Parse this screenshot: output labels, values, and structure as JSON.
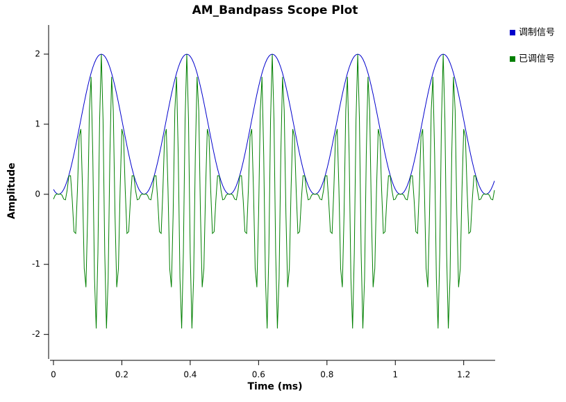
{
  "chart_data": {
    "type": "line",
    "title": "AM_Bandpass  Scope Plot",
    "x_label": "Time (ms)",
    "y_label": "Amplitude",
    "xlim": [
      0,
      1.29
    ],
    "xticks": [
      0,
      0.2,
      0.4,
      0.6,
      0.8,
      1,
      1.2
    ],
    "ylim": [
      -2.35,
      2.4
    ],
    "yticks": [
      -2,
      -1,
      0,
      1,
      2
    ],
    "legend": "top-right",
    "grid": false,
    "x": [
      0,
      0.005,
      0.01,
      0.015,
      0.02,
      0.025,
      0.03,
      0.035,
      0.04,
      0.045,
      0.05,
      0.055,
      0.06,
      0.065,
      0.07,
      0.075,
      0.08,
      0.085,
      0.09,
      0.095,
      0.1,
      0.105,
      0.11,
      0.115,
      0.12,
      0.125,
      0.13,
      0.135,
      0.14,
      0.145,
      0.15,
      0.155,
      0.16,
      0.165,
      0.17,
      0.175,
      0.18,
      0.185,
      0.19,
      0.195,
      0.2,
      0.205,
      0.21,
      0.215,
      0.22,
      0.225,
      0.23,
      0.235,
      0.24,
      0.245,
      0.25,
      0.255,
      0.26,
      0.265,
      0.27,
      0.275,
      0.28,
      0.285,
      0.29,
      0.295,
      0.3,
      0.305,
      0.31,
      0.315,
      0.32,
      0.325,
      0.33,
      0.335,
      0.34,
      0.345,
      0.35,
      0.355,
      0.36,
      0.365,
      0.37,
      0.375,
      0.38,
      0.385,
      0.39,
      0.395,
      0.4,
      0.405,
      0.41,
      0.415,
      0.42,
      0.425,
      0.43,
      0.435,
      0.44,
      0.445,
      0.45,
      0.455,
      0.46,
      0.465,
      0.47,
      0.475,
      0.48,
      0.485,
      0.49,
      0.495,
      0.5,
      0.505,
      0.51,
      0.515,
      0.52,
      0.525,
      0.53,
      0.535,
      0.54,
      0.545,
      0.55,
      0.555,
      0.56,
      0.565,
      0.57,
      0.575,
      0.58,
      0.585,
      0.59,
      0.595,
      0.6,
      0.605,
      0.61,
      0.615,
      0.62,
      0.625,
      0.63,
      0.635,
      0.64,
      0.645,
      0.65,
      0.655,
      0.66,
      0.665,
      0.67,
      0.675,
      0.68,
      0.685,
      0.69,
      0.695,
      0.7,
      0.705,
      0.71,
      0.715,
      0.72,
      0.725,
      0.73,
      0.735,
      0.74,
      0.745,
      0.75,
      0.755,
      0.76,
      0.765,
      0.77,
      0.775,
      0.78,
      0.785,
      0.79,
      0.795,
      0.8,
      0.805,
      0.81,
      0.815,
      0.82,
      0.825,
      0.83,
      0.835,
      0.84,
      0.845,
      0.85,
      0.855,
      0.86,
      0.865,
      0.87,
      0.875,
      0.88,
      0.885,
      0.89,
      0.895,
      0.9,
      0.905,
      0.91,
      0.915,
      0.92,
      0.925,
      0.93,
      0.935,
      0.94,
      0.945,
      0.95,
      0.955,
      0.96,
      0.965,
      0.97,
      0.975,
      0.98,
      0.985,
      0.99,
      0.995,
      1,
      1.005,
      1.01,
      1.015,
      1.02,
      1.025,
      1.03,
      1.035,
      1.04,
      1.045,
      1.05,
      1.055,
      1.06,
      1.065,
      1.07,
      1.075,
      1.08,
      1.085,
      1.09,
      1.095,
      1.1,
      1.105,
      1.11,
      1.115,
      1.12,
      1.125,
      1.13,
      1.135,
      1.14,
      1.145,
      1.15,
      1.155,
      1.16,
      1.165,
      1.17,
      1.175,
      1.18,
      1.185,
      1.19,
      1.195,
      1.2,
      1.205,
      1.21,
      1.215,
      1.22,
      1.225,
      1.23,
      1.235,
      1.24,
      1.245,
      1.25,
      1.255,
      1.26,
      1.265,
      1.27,
      1.275,
      1.28,
      1.285,
      1.29
    ],
    "series": [
      {
        "name": "调制信号",
        "color": "#0000cc",
        "values": [
          0.07,
          0.031,
          0.008,
          0,
          0.008,
          0.031,
          0.07,
          0.124,
          0.191,
          0.271,
          0.363,
          0.464,
          0.574,
          0.691,
          0.813,
          0.937,
          1.063,
          1.187,
          1.309,
          1.426,
          1.536,
          1.637,
          1.729,
          1.809,
          1.876,
          1.93,
          1.969,
          1.992,
          2,
          1.992,
          1.969,
          1.93,
          1.876,
          1.809,
          1.729,
          1.637,
          1.536,
          1.426,
          1.309,
          1.187,
          1.063,
          0.937,
          0.813,
          0.691,
          0.574,
          0.464,
          0.363,
          0.271,
          0.191,
          0.124,
          0.07,
          0.031,
          0.008,
          0,
          0.008,
          0.031,
          0.07,
          0.124,
          0.191,
          0.271,
          0.363,
          0.464,
          0.574,
          0.691,
          0.813,
          0.937,
          1.063,
          1.187,
          1.309,
          1.426,
          1.536,
          1.637,
          1.729,
          1.809,
          1.876,
          1.93,
          1.969,
          1.992,
          2,
          1.992,
          1.969,
          1.93,
          1.876,
          1.809,
          1.729,
          1.637,
          1.536,
          1.426,
          1.309,
          1.187,
          1.063,
          0.937,
          0.813,
          0.691,
          0.574,
          0.464,
          0.363,
          0.271,
          0.191,
          0.124,
          0.07,
          0.031,
          0.008,
          0,
          0.008,
          0.031,
          0.07,
          0.124,
          0.191,
          0.271,
          0.363,
          0.464,
          0.574,
          0.691,
          0.813,
          0.937,
          1.063,
          1.187,
          1.309,
          1.426,
          1.536,
          1.637,
          1.729,
          1.809,
          1.876,
          1.93,
          1.969,
          1.992,
          2,
          1.992,
          1.969,
          1.93,
          1.876,
          1.809,
          1.729,
          1.637,
          1.536,
          1.426,
          1.309,
          1.187,
          1.063,
          0.937,
          0.813,
          0.691,
          0.574,
          0.464,
          0.363,
          0.271,
          0.191,
          0.124,
          0.07,
          0.031,
          0.008,
          0,
          0.008,
          0.031,
          0.07,
          0.124,
          0.191,
          0.271,
          0.363,
          0.464,
          0.574,
          0.691,
          0.813,
          0.937,
          1.063,
          1.187,
          1.309,
          1.426,
          1.536,
          1.637,
          1.729,
          1.809,
          1.876,
          1.93,
          1.969,
          1.992,
          2,
          1.992,
          1.969,
          1.93,
          1.876,
          1.809,
          1.729,
          1.637,
          1.536,
          1.426,
          1.309,
          1.187,
          1.063,
          0.937,
          0.813,
          0.691,
          0.574,
          0.464,
          0.363,
          0.271,
          0.191,
          0.124,
          0.07,
          0.031,
          0.008,
          0,
          0.008,
          0.031,
          0.07,
          0.124,
          0.191,
          0.271,
          0.363,
          0.464,
          0.574,
          0.691,
          0.813,
          0.937,
          1.063,
          1.187,
          1.309,
          1.426,
          1.536,
          1.637,
          1.729,
          1.809,
          1.876,
          1.93,
          1.969,
          1.992,
          2,
          1.992,
          1.969,
          1.93,
          1.876,
          1.809,
          1.729,
          1.637,
          1.536,
          1.426,
          1.309,
          1.187,
          1.063,
          0.937,
          0.813,
          0.691,
          0.574,
          0.464,
          0.363,
          0.271,
          0.191,
          0.124,
          0.07,
          0.031,
          0.008,
          0,
          0.008,
          0.031,
          0.07,
          0.124,
          0.191
        ]
      },
      {
        "name": "已调信号",
        "color": "#007f00",
        "values": [
          -0.069,
          -0.013,
          0.004,
          0,
          0.004,
          -0.013,
          -0.069,
          -0.079,
          0.059,
          0.262,
          0.265,
          -0.087,
          -0.534,
          -0.559,
          0.051,
          0.821,
          0.931,
          0.075,
          -1.059,
          -1.326,
          -0.288,
          1.194,
          1.675,
          0.559,
          -1.196,
          -1.915,
          -0.838,
          1.067,
          2,
          1.067,
          -0.838,
          -1.915,
          -1.196,
          0.559,
          1.675,
          1.194,
          -0.288,
          -1.326,
          -1.059,
          0.075,
          0.931,
          0.821,
          0.051,
          -0.559,
          -0.534,
          -0.087,
          0.265,
          0.262,
          0.059,
          -0.079,
          -0.069,
          -0.013,
          0.004,
          0,
          0.004,
          -0.013,
          -0.069,
          -0.079,
          0.059,
          0.262,
          0.265,
          -0.087,
          -0.534,
          -0.559,
          0.051,
          0.821,
          0.931,
          0.075,
          -1.059,
          -1.326,
          -0.288,
          1.194,
          1.675,
          0.559,
          -1.196,
          -1.915,
          -0.838,
          1.067,
          2,
          1.067,
          -0.838,
          -1.915,
          -1.196,
          0.559,
          1.675,
          1.194,
          -0.288,
          -1.326,
          -1.059,
          0.075,
          0.931,
          0.821,
          0.051,
          -0.559,
          -0.534,
          -0.087,
          0.265,
          0.262,
          0.059,
          -0.079,
          -0.069,
          -0.013,
          0.004,
          0,
          0.004,
          -0.013,
          -0.069,
          -0.079,
          0.059,
          0.262,
          0.265,
          -0.087,
          -0.534,
          -0.559,
          0.051,
          0.821,
          0.931,
          0.075,
          -1.059,
          -1.326,
          -0.288,
          1.194,
          1.675,
          0.559,
          -1.196,
          -1.915,
          -0.838,
          1.067,
          2,
          1.067,
          -0.838,
          -1.915,
          -1.196,
          0.559,
          1.675,
          1.194,
          -0.288,
          -1.326,
          -1.059,
          0.075,
          0.931,
          0.821,
          0.051,
          -0.559,
          -0.534,
          -0.087,
          0.265,
          0.262,
          0.059,
          -0.079,
          -0.069,
          -0.013,
          0.004,
          0,
          0.004,
          -0.013,
          -0.069,
          -0.079,
          0.059,
          0.262,
          0.265,
          -0.087,
          -0.534,
          -0.559,
          0.051,
          0.821,
          0.931,
          0.075,
          -1.059,
          -1.326,
          -0.288,
          1.194,
          1.675,
          0.559,
          -1.196,
          -1.915,
          -0.838,
          1.067,
          2,
          1.067,
          -0.838,
          -1.915,
          -1.196,
          0.559,
          1.675,
          1.194,
          -0.288,
          -1.326,
          -1.059,
          0.075,
          0.931,
          0.821,
          0.051,
          -0.559,
          -0.534,
          -0.087,
          0.265,
          0.262,
          0.059,
          -0.079,
          -0.069,
          -0.013,
          0.004,
          0,
          0.004,
          -0.013,
          -0.069,
          -0.079,
          0.059,
          0.262,
          0.265,
          -0.087,
          -0.534,
          -0.559,
          0.051,
          0.821,
          0.931,
          0.075,
          -1.059,
          -1.326,
          -0.288,
          1.194,
          1.675,
          0.559,
          -1.196,
          -1.915,
          -0.838,
          1.067,
          2,
          1.067,
          -0.838,
          -1.915,
          -1.196,
          0.559,
          1.675,
          1.194,
          -0.288,
          -1.326,
          -1.059,
          0.075,
          0.931,
          0.821,
          0.051,
          -0.559,
          -0.534,
          -0.087,
          0.265,
          0.262,
          0.059,
          -0.079,
          -0.069,
          -0.013,
          0.004,
          0,
          0.004,
          -0.013,
          -0.069,
          -0.079,
          0.059
        ]
      }
    ]
  }
}
